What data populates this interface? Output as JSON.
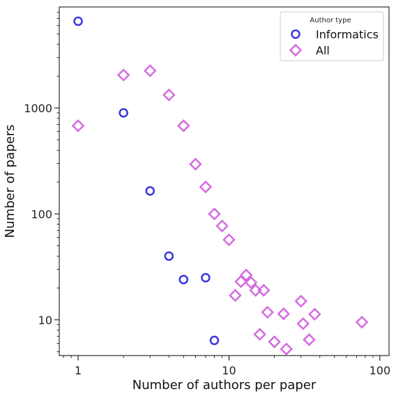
{
  "chart_data": {
    "type": "scatter",
    "xlabel": "Number of authors per paper",
    "ylabel": "Number of papers",
    "xscale": "log",
    "yscale": "log",
    "xlim": [
      0.75,
      115
    ],
    "ylim": [
      4.6,
      9000
    ],
    "x_ticks": [
      1,
      10,
      100
    ],
    "x_tick_labels": [
      "1",
      "10",
      "100"
    ],
    "y_ticks": [
      10,
      100,
      1000
    ],
    "y_tick_labels": [
      "10",
      "100",
      "1000"
    ],
    "grid": false,
    "legend": {
      "title": "Author type",
      "position": "top-right"
    },
    "series": [
      {
        "name": "Informatics",
        "marker": "circle",
        "color": "#3a35e0",
        "points": [
          {
            "x": 1,
            "y": 6600
          },
          {
            "x": 2,
            "y": 900
          },
          {
            "x": 3,
            "y": 165
          },
          {
            "x": 4,
            "y": 40
          },
          {
            "x": 5,
            "y": 24
          },
          {
            "x": 7,
            "y": 25
          },
          {
            "x": 8,
            "y": 6.4
          }
        ]
      },
      {
        "name": "All",
        "marker": "diamond",
        "color": "#d56be0",
        "points": [
          {
            "x": 1,
            "y": 680
          },
          {
            "x": 2,
            "y": 2050
          },
          {
            "x": 3,
            "y": 2250
          },
          {
            "x": 4,
            "y": 1330
          },
          {
            "x": 5,
            "y": 680
          },
          {
            "x": 6,
            "y": 295
          },
          {
            "x": 7,
            "y": 180
          },
          {
            "x": 8,
            "y": 100
          },
          {
            "x": 9,
            "y": 77
          },
          {
            "x": 10,
            "y": 57
          },
          {
            "x": 11,
            "y": 17
          },
          {
            "x": 12,
            "y": 23
          },
          {
            "x": 13,
            "y": 26.5
          },
          {
            "x": 14,
            "y": 22.5
          },
          {
            "x": 15,
            "y": 19
          },
          {
            "x": 16,
            "y": 7.3
          },
          {
            "x": 17,
            "y": 19
          },
          {
            "x": 18,
            "y": 11.8
          },
          {
            "x": 20,
            "y": 6.2
          },
          {
            "x": 23,
            "y": 11.4
          },
          {
            "x": 24,
            "y": 5.3
          },
          {
            "x": 30,
            "y": 15
          },
          {
            "x": 31,
            "y": 9.2
          },
          {
            "x": 34,
            "y": 6.5
          },
          {
            "x": 37,
            "y": 11.3
          },
          {
            "x": 76,
            "y": 9.5
          }
        ]
      }
    ]
  }
}
